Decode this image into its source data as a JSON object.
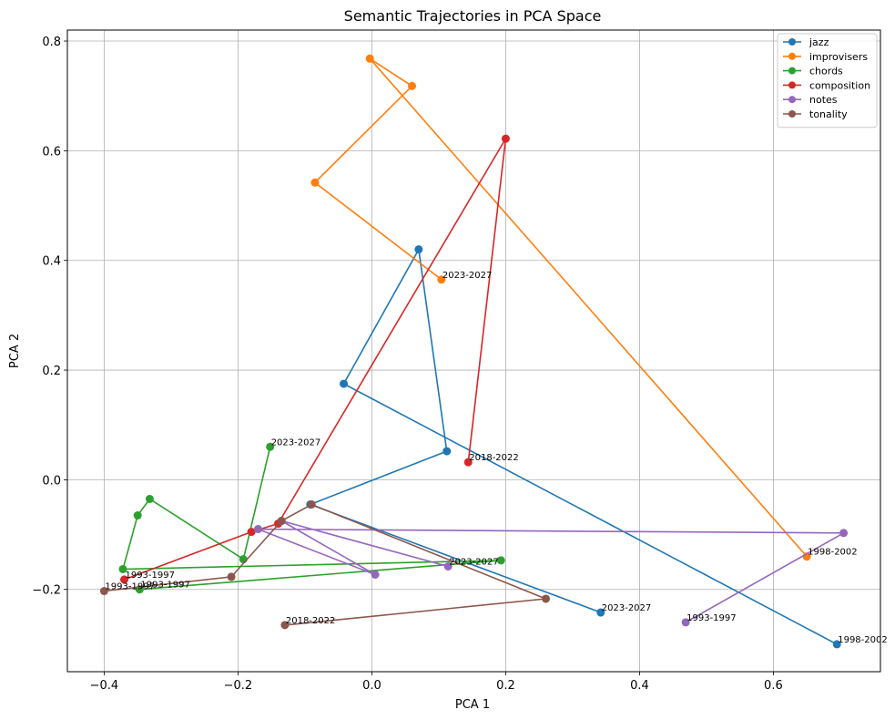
{
  "chart_data": {
    "type": "line",
    "title": "Semantic Trajectories in PCA Space",
    "xlabel": "PCA 1",
    "ylabel": "PCA 2",
    "xlim": [
      -0.455,
      0.76
    ],
    "ylim": [
      -0.35,
      0.82
    ],
    "xticks": [
      -0.4,
      -0.2,
      0.0,
      0.2,
      0.4,
      0.6
    ],
    "xtick_labels": [
      "−0.4",
      "−0.2",
      "0.0",
      "0.2",
      "0.4",
      "0.6"
    ],
    "yticks": [
      -0.2,
      0.0,
      0.2,
      0.4,
      0.6,
      0.8
    ],
    "ytick_labels": [
      "−0.2",
      "0.0",
      "0.2",
      "0.4",
      "0.6",
      "0.8"
    ],
    "grid": true,
    "legend_position": "top-right",
    "series": [
      {
        "name": "jazz",
        "color": "#1f77b4",
        "points": [
          [
            0.695,
            -0.3
          ],
          [
            -0.042,
            0.175
          ],
          [
            0.07,
            0.42
          ],
          [
            0.112,
            0.052
          ],
          [
            -0.092,
            -0.045
          ],
          [
            0.342,
            -0.242
          ]
        ],
        "start_label": "1998-2002",
        "end_label": "2023-2027"
      },
      {
        "name": "improvisers",
        "color": "#ff7f0e",
        "points": [
          [
            0.65,
            -0.14
          ],
          [
            -0.003,
            0.768
          ],
          [
            0.06,
            0.718
          ],
          [
            -0.085,
            0.542
          ],
          [
            0.104,
            0.365
          ]
        ],
        "start_label": "1998-2002",
        "end_label": "2023-2027"
      },
      {
        "name": "chords",
        "color": "#2ca02c",
        "points": [
          [
            -0.347,
            -0.2
          ],
          [
            0.193,
            -0.147
          ],
          [
            -0.372,
            -0.163
          ],
          [
            -0.35,
            -0.065
          ],
          [
            -0.332,
            -0.035
          ],
          [
            -0.192,
            -0.145
          ],
          [
            -0.152,
            0.06
          ]
        ],
        "start_label": "1993-1997",
        "end_label": "2023-2027"
      },
      {
        "name": "composition",
        "color": "#d62728",
        "points": [
          [
            -0.37,
            -0.182
          ],
          [
            -0.18,
            -0.095
          ],
          [
            -0.14,
            -0.08
          ],
          [
            0.2,
            0.622
          ],
          [
            0.144,
            0.032
          ]
        ],
        "start_label": "1993-1997",
        "end_label": "2018-2022"
      },
      {
        "name": "notes",
        "color": "#9467bd",
        "points": [
          [
            0.469,
            -0.26
          ],
          [
            0.705,
            -0.097
          ],
          [
            -0.17,
            -0.09
          ],
          [
            0.005,
            -0.173
          ],
          [
            -0.135,
            -0.075
          ],
          [
            0.114,
            -0.158
          ]
        ],
        "start_label": "1993-1997",
        "end_label": "2023-2027"
      },
      {
        "name": "tonality",
        "color": "#8c564b",
        "points": [
          [
            -0.4,
            -0.203
          ],
          [
            -0.21,
            -0.177
          ],
          [
            -0.135,
            -0.075
          ],
          [
            -0.09,
            -0.045
          ],
          [
            0.26,
            -0.217
          ],
          [
            -0.13,
            -0.265
          ]
        ],
        "start_label": "1993-1997",
        "end_label": "2018-2022"
      }
    ]
  }
}
